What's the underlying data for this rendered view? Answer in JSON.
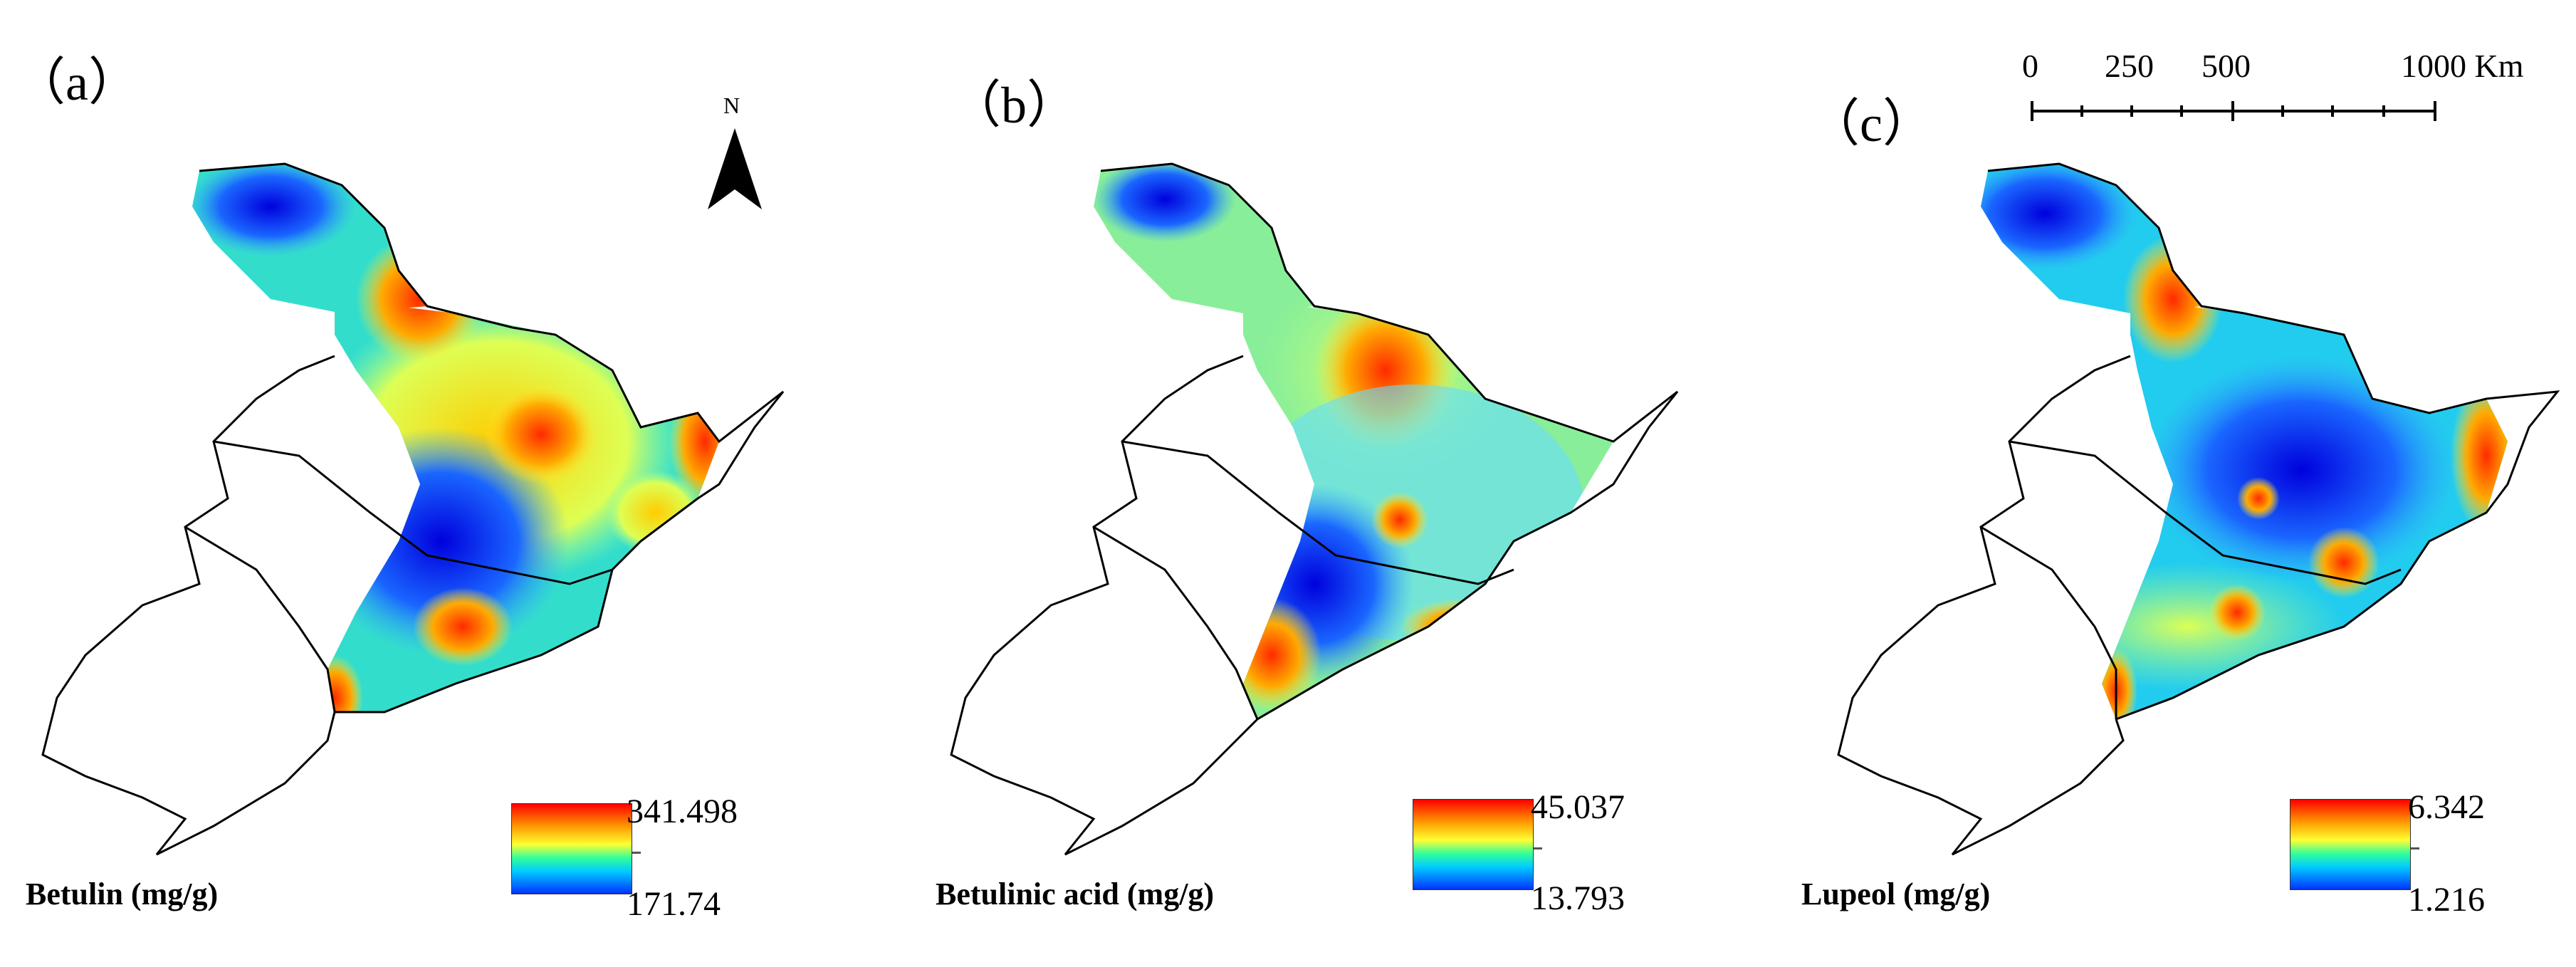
{
  "panels": [
    {
      "id": "a",
      "label": "（a）",
      "variable": "Betulin (mg/g)",
      "legend_max": "341.498",
      "legend_min": "171.74"
    },
    {
      "id": "b",
      "label": "（b）",
      "variable": "Betulinic acid (mg/g)",
      "legend_max": "45.037",
      "legend_min": "13.793"
    },
    {
      "id": "c",
      "label": "（c）",
      "variable": "Lupeol (mg/g)",
      "legend_max": "6.342",
      "legend_min": "1.216"
    }
  ],
  "north_arrow": {
    "label": "N"
  },
  "scale_bar": {
    "ticks": [
      "0",
      "250",
      "500",
      "1000 Km"
    ]
  },
  "colors": {
    "ramp": [
      "#ff0000",
      "#ff9900",
      "#ffff33",
      "#33ff99",
      "#00ccff",
      "#0000ff"
    ],
    "outline": "#000000"
  }
}
